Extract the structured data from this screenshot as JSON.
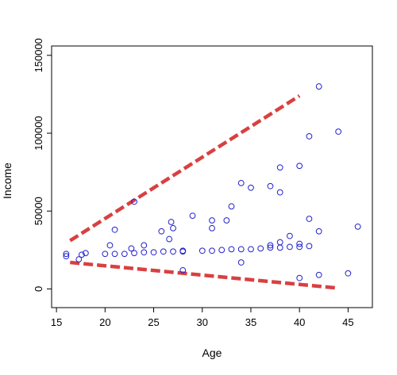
{
  "chart_data": {
    "type": "scatter",
    "title": "",
    "xlabel": "Age",
    "ylabel": "Income",
    "xlim": [
      14.5,
      47.5
    ],
    "ylim": [
      -12000,
      156000
    ],
    "x_ticks": [
      15,
      20,
      25,
      30,
      35,
      40,
      45
    ],
    "y_ticks": [
      0,
      50000,
      100000,
      150000
    ],
    "point_color": "#2222cc",
    "line_color": "#d94040",
    "points": [
      {
        "x": 16,
        "y": 21000
      },
      {
        "x": 16,
        "y": 22500
      },
      {
        "x": 17.3,
        "y": 19000
      },
      {
        "x": 17.6,
        "y": 22000
      },
      {
        "x": 18,
        "y": 23000
      },
      {
        "x": 20,
        "y": 22500
      },
      {
        "x": 20.5,
        "y": 28000
      },
      {
        "x": 21,
        "y": 22500
      },
      {
        "x": 21,
        "y": 38000
      },
      {
        "x": 22,
        "y": 22500
      },
      {
        "x": 22.7,
        "y": 26000
      },
      {
        "x": 23,
        "y": 23000
      },
      {
        "x": 23,
        "y": 56000
      },
      {
        "x": 24,
        "y": 23500
      },
      {
        "x": 24,
        "y": 28000
      },
      {
        "x": 25,
        "y": 23500
      },
      {
        "x": 25.8,
        "y": 37000
      },
      {
        "x": 26,
        "y": 24000
      },
      {
        "x": 26.6,
        "y": 32000
      },
      {
        "x": 26.8,
        "y": 43000
      },
      {
        "x": 27,
        "y": 24000
      },
      {
        "x": 27,
        "y": 39000
      },
      {
        "x": 28,
        "y": 12000
      },
      {
        "x": 28,
        "y": 24000
      },
      {
        "x": 28,
        "y": 24500
      },
      {
        "x": 29,
        "y": 47000
      },
      {
        "x": 30,
        "y": 24500
      },
      {
        "x": 31,
        "y": 24500
      },
      {
        "x": 31,
        "y": 39000
      },
      {
        "x": 31,
        "y": 44000
      },
      {
        "x": 32,
        "y": 25000
      },
      {
        "x": 32.5,
        "y": 44000
      },
      {
        "x": 33,
        "y": 25500
      },
      {
        "x": 33,
        "y": 53000
      },
      {
        "x": 34,
        "y": 17000
      },
      {
        "x": 34,
        "y": 25500
      },
      {
        "x": 34,
        "y": 68000
      },
      {
        "x": 35,
        "y": 25500
      },
      {
        "x": 35,
        "y": 65000
      },
      {
        "x": 36,
        "y": 26000
      },
      {
        "x": 37,
        "y": 26500
      },
      {
        "x": 37,
        "y": 28000
      },
      {
        "x": 37,
        "y": 66000
      },
      {
        "x": 38,
        "y": 26500
      },
      {
        "x": 38,
        "y": 30000
      },
      {
        "x": 38,
        "y": 62000
      },
      {
        "x": 38,
        "y": 78000
      },
      {
        "x": 39,
        "y": 27000
      },
      {
        "x": 39,
        "y": 34000
      },
      {
        "x": 40,
        "y": 7000
      },
      {
        "x": 40,
        "y": 27000
      },
      {
        "x": 40,
        "y": 29000
      },
      {
        "x": 40,
        "y": 79000
      },
      {
        "x": 41,
        "y": 27500
      },
      {
        "x": 41,
        "y": 45000
      },
      {
        "x": 41,
        "y": 98000
      },
      {
        "x": 42,
        "y": 9000
      },
      {
        "x": 42,
        "y": 37000
      },
      {
        "x": 42,
        "y": 130000
      },
      {
        "x": 44,
        "y": 101000
      },
      {
        "x": 45,
        "y": 10000
      },
      {
        "x": 46,
        "y": 40000
      }
    ],
    "trend_lines": [
      {
        "x": [
          16.4,
          40
        ],
        "y": [
          31000,
          124000
        ]
      },
      {
        "x": [
          16.4,
          44
        ],
        "y": [
          17000,
          500
        ]
      }
    ]
  }
}
